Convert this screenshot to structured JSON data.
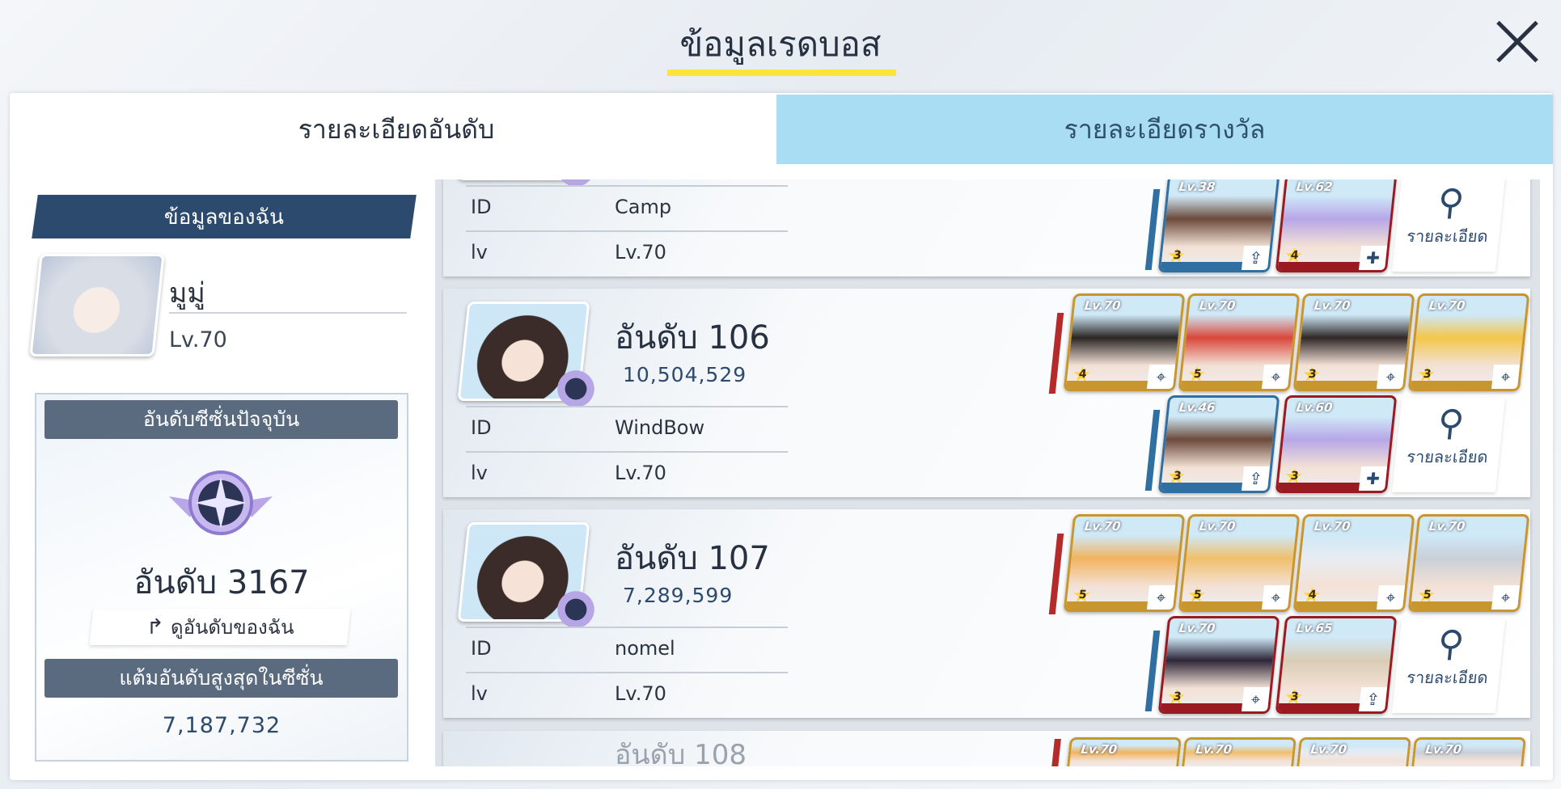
{
  "header": {
    "title": "ข้อมูลเรดบอส",
    "close_icon": "close-icon"
  },
  "tabs": [
    {
      "label": "รายละเอียดอันดับ",
      "active": true
    },
    {
      "label": "รายละเอียดรางวัล",
      "active": false
    }
  ],
  "my_info": {
    "header": "ข้อมูลของฉัน",
    "name": "มูมู่",
    "level": "Lv.70",
    "season_rank_label": "อันดับซีซั่นปัจจุบัน",
    "rank": "อันดับ 3167",
    "view_my_rank": "ดูอันดับของฉัน",
    "best_score_label": "แต้มอันดับสูงสุดในซีซั่น",
    "best_score": "7,187,732"
  },
  "labels": {
    "id": "ID",
    "lv": "lv",
    "detail": "รายละเอียด"
  },
  "rows": [
    {
      "rank": "",
      "score": "",
      "id": "Camp",
      "lv": "Lv.70",
      "strikers": [],
      "specials": [
        {
          "lv": "Lv.38",
          "star": "3",
          "color": "blue",
          "icon": "⇪",
          "hue": "#6b4a3a"
        },
        {
          "lv": "Lv.62",
          "star": "4",
          "color": "red",
          "icon": "✚",
          "hue": "#b7a6e8"
        }
      ]
    },
    {
      "rank": "อันดับ 106",
      "score": "10,504,529",
      "id": "WindBow",
      "lv": "Lv.70",
      "strikers": [
        {
          "lv": "Lv.70",
          "star": "4",
          "hue": "#2b2624"
        },
        {
          "lv": "Lv.70",
          "star": "5",
          "hue": "#d9473a"
        },
        {
          "lv": "Lv.70",
          "star": "3",
          "hue": "#302828"
        },
        {
          "lv": "Lv.70",
          "star": "3",
          "hue": "#f3c64a"
        }
      ],
      "specials": [
        {
          "lv": "Lv.46",
          "star": "3",
          "color": "blue",
          "icon": "⇪",
          "hue": "#6b4a3a"
        },
        {
          "lv": "Lv.60",
          "star": "3",
          "color": "red",
          "icon": "✚",
          "hue": "#b7a6e8"
        }
      ]
    },
    {
      "rank": "อันดับ 107",
      "score": "7,289,599",
      "id": "nomel",
      "lv": "Lv.70",
      "strikers": [
        {
          "lv": "Lv.70",
          "star": "5",
          "hue": "#f1b35e"
        },
        {
          "lv": "Lv.70",
          "star": "5",
          "hue": "#f0bf6c"
        },
        {
          "lv": "Lv.70",
          "star": "4",
          "hue": "#e8ecf2"
        },
        {
          "lv": "Lv.70",
          "star": "5",
          "hue": "#c9cfd8"
        }
      ],
      "specials": [
        {
          "lv": "Lv.70",
          "star": "3",
          "color": "red",
          "icon": "⌖",
          "hue": "#2e2638"
        },
        {
          "lv": "Lv.65",
          "star": "3",
          "color": "red",
          "icon": "⇪",
          "hue": "#d9ccb4"
        }
      ]
    },
    {
      "rank": "อันดับ 108",
      "score": "",
      "id": "",
      "lv": "",
      "strikers": [
        {
          "lv": "Lv.70",
          "star": "",
          "hue": "#f1b35e"
        },
        {
          "lv": "Lv.70",
          "star": "",
          "hue": "#f0bf6c"
        },
        {
          "lv": "Lv.70",
          "star": "",
          "hue": "#e8ecf2"
        },
        {
          "lv": "Lv.70",
          "star": "",
          "hue": "#c9cfd8"
        }
      ],
      "specials": []
    }
  ],
  "colors": {
    "accent_yellow": "#ffe336",
    "navy": "#2c4a6e",
    "tab_inactive": "#a9ddf3",
    "striker_frame": "#c8962e",
    "special_frame": "#9a1a22"
  }
}
